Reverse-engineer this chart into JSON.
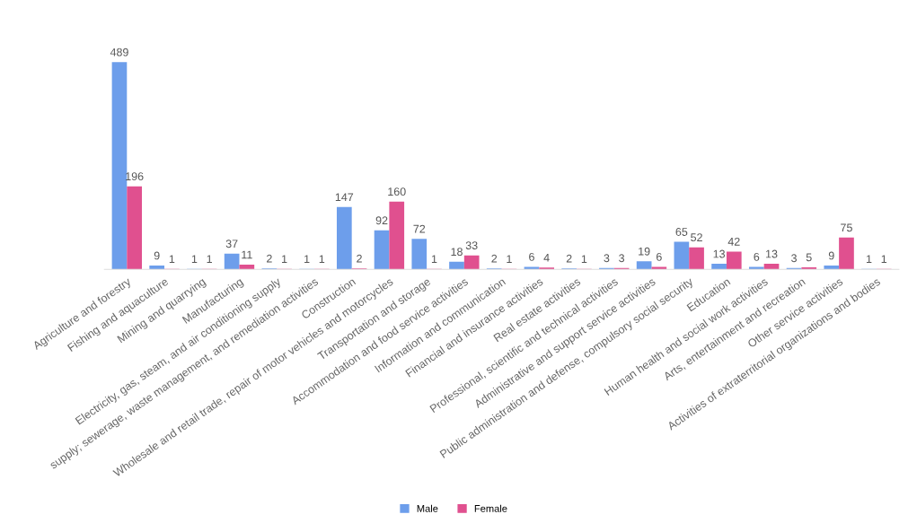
{
  "chart_data": {
    "type": "bar",
    "categories": [
      "Agriculture and forestry",
      "Fishing and aquaculture",
      "Mining and quarrying",
      "Manufacturing",
      "Electricity, gas, steam, and air conditioning supply",
      "supply; sewerage, waste management, and remediation activities",
      "Construction",
      "Wholesale and retail trade, repair of motor vehicles and motorcycles",
      "Transportation and storage",
      "Accommodation and food service activities",
      "Information and communication",
      "Financial and insurance activities",
      "Real estate activities",
      "Professional, scientific and technical activities",
      "Administrative and support service activities",
      "Public administration and defense, compulsory social security",
      "Education",
      "Human health and social work activities",
      "Arts, entertainment and recreation",
      "Other service activities",
      "Activities of extraterritorial organizations and bodies"
    ],
    "series": [
      {
        "name": "Male",
        "color": "#6d9eeb",
        "values": [
          489,
          9,
          1,
          37,
          2,
          1,
          147,
          92,
          72,
          18,
          2,
          6,
          2,
          3,
          19,
          65,
          13,
          6,
          3,
          9,
          1
        ]
      },
      {
        "name": "Female",
        "color": "#e0508f",
        "values": [
          196,
          1,
          1,
          11,
          1,
          1,
          2,
          160,
          1,
          33,
          1,
          4,
          1,
          3,
          6,
          52,
          42,
          13,
          5,
          75,
          1
        ]
      }
    ],
    "data_labels": true,
    "legend": "bottom"
  }
}
